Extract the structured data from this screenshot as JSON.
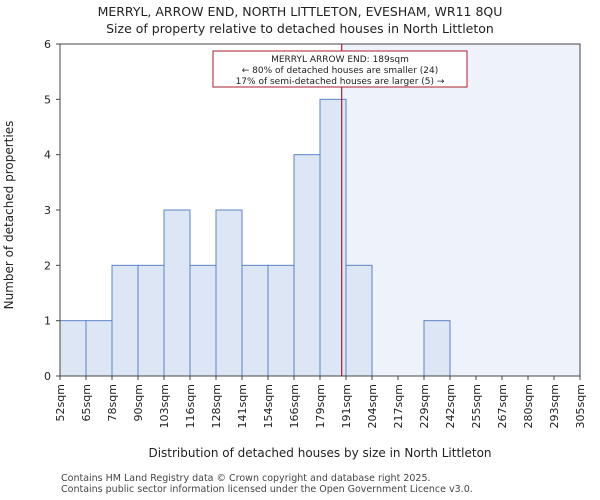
{
  "header": {
    "title": "MERRYL, ARROW END, NORTH LITTLETON, EVESHAM, WR11 8QU",
    "subtitle": "Size of property relative to detached houses in North Littleton"
  },
  "footer": {
    "line1": "Contains HM Land Registry data © Crown copyright and database right 2025.",
    "line2": "Contains public sector information licensed under the Open Government Licence v3.0."
  },
  "chart_data": {
    "type": "bar",
    "title": "Size of property relative to detached houses in North Littleton",
    "xlabel": "Distribution of detached houses by size in North Littleton",
    "ylabel": "Number of detached properties",
    "categories": [
      "52sqm",
      "65sqm",
      "78sqm",
      "90sqm",
      "103sqm",
      "116sqm",
      "128sqm",
      "141sqm",
      "154sqm",
      "166sqm",
      "179sqm",
      "191sqm",
      "204sqm",
      "217sqm",
      "229sqm",
      "242sqm",
      "255sqm",
      "267sqm",
      "280sqm",
      "293sqm",
      "305sqm"
    ],
    "values": [
      1,
      1,
      2,
      2,
      3,
      2,
      3,
      2,
      2,
      4,
      5,
      2,
      0,
      0,
      1,
      0,
      0,
      0,
      0,
      0,
      0
    ],
    "ylim": [
      0,
      6
    ],
    "yticks": [
      "0",
      "1",
      "2",
      "3",
      "4",
      "5",
      "6"
    ],
    "grid": false,
    "property_marker": {
      "value_sqm": 189,
      "label_line1": "MERRYL ARROW END: 189sqm",
      "label_line2": "← 80% of detached houses are smaller (24)",
      "label_line3": "17% of semi-detached houses are larger (5) →"
    },
    "colors": {
      "bar_fill": "#dce6f5",
      "bar_stroke": "#5b84c4",
      "marker": "#aa1e2b",
      "highlight_region": "#eef2fb"
    }
  }
}
